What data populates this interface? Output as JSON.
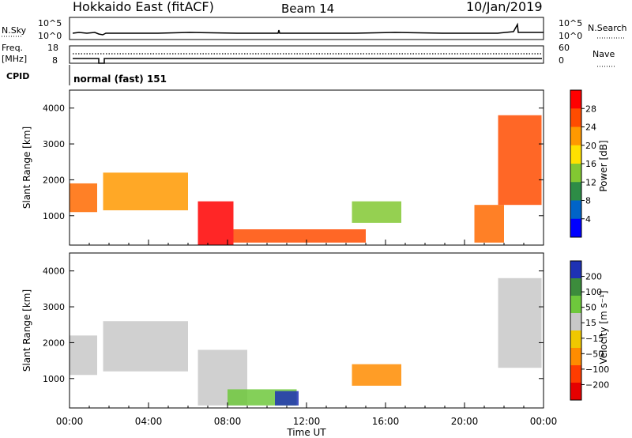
{
  "header": {
    "station": "Hokkaido East (fitACF)",
    "beam": "Beam 14",
    "date": "10/Jan/2019"
  },
  "strip": {
    "nsky_label": "N.Sky",
    "nsky_ticks": [
      "10^5",
      "10^0"
    ],
    "nsearch_label": "N.Search",
    "nsearch_ticks": [
      "10^5",
      "10^0"
    ],
    "freq_label_1": "Freq.",
    "freq_label_2": "[MHz]",
    "freq_ticks": [
      "18",
      "8"
    ],
    "nave_label": "Nave",
    "nave_ticks": [
      "60",
      "0"
    ],
    "cpid_label": "CPID",
    "cpid_value": "normal (fast) 151"
  },
  "chart_data": [
    {
      "type": "heatmap",
      "name": "power",
      "ylabel": "Slant Range [km]",
      "yticks": [
        "4000",
        "3000",
        "2000",
        "1000"
      ],
      "ylim": [
        180,
        4500
      ],
      "xlim": [
        0,
        24
      ],
      "colorbar_label": "Power [dB]",
      "colorbar_ticks": [
        "28",
        "24",
        "20",
        "16",
        "12",
        "8",
        "4"
      ],
      "colorbar_colors": [
        "#ff0000",
        "#ff4c00",
        "#ff9900",
        "#ffe100",
        "#82c832",
        "#2d8c46",
        "#0064c8",
        "#0000ff"
      ],
      "regions": [
        {
          "t0": 0.0,
          "t1": 1.4,
          "r0": 1100,
          "r1": 1900,
          "color": "#ff6a00"
        },
        {
          "t0": 1.7,
          "t1": 6.0,
          "r0": 1150,
          "r1": 2200,
          "color": "#ff9900"
        },
        {
          "t0": 6.5,
          "t1": 8.3,
          "r0": 180,
          "r1": 1400,
          "color": "#ff0000"
        },
        {
          "t0": 8.3,
          "t1": 15.0,
          "r0": 250,
          "r1": 620,
          "color": "#ff4c00"
        },
        {
          "t0": 14.3,
          "t1": 16.8,
          "r0": 800,
          "r1": 1400,
          "color": "#82c832"
        },
        {
          "t0": 20.5,
          "t1": 22.0,
          "r0": 250,
          "r1": 1300,
          "color": "#ff6a00"
        },
        {
          "t0": 21.7,
          "t1": 23.9,
          "r0": 1300,
          "r1": 3800,
          "color": "#ff4c00"
        }
      ]
    },
    {
      "type": "heatmap",
      "name": "velocity",
      "ylabel": "Slant Range [km]",
      "yticks": [
        "4000",
        "3000",
        "2000",
        "1000"
      ],
      "ylim": [
        180,
        4500
      ],
      "xlim": [
        0,
        24
      ],
      "xlabel": "Time UT",
      "xticks": [
        "00:00",
        "04:00",
        "08:00",
        "12:00",
        "16:00",
        "20:00",
        "00:00"
      ],
      "colorbar_label": "Velocity [m s⁻¹]",
      "colorbar_ticks": [
        "200",
        "100",
        "50",
        "15",
        "−15",
        "−50",
        "−100",
        "−200"
      ],
      "colorbar_colors": [
        "#1e32b4",
        "#3c8c3c",
        "#6ec83c",
        "#c8c8c8",
        "#f0c800",
        "#ff8c00",
        "#ff3c00",
        "#e60000"
      ],
      "regions": [
        {
          "t0": 0.0,
          "t1": 1.4,
          "r0": 1100,
          "r1": 2200,
          "color": "#c8c8c8"
        },
        {
          "t0": 1.7,
          "t1": 6.0,
          "r0": 1200,
          "r1": 2600,
          "color": "#c8c8c8"
        },
        {
          "t0": 6.5,
          "t1": 9.0,
          "r0": 250,
          "r1": 1800,
          "color": "#c8c8c8"
        },
        {
          "t0": 8.0,
          "t1": 11.5,
          "r0": 250,
          "r1": 700,
          "color": "#6ec83c"
        },
        {
          "t0": 10.4,
          "t1": 11.6,
          "r0": 250,
          "r1": 650,
          "color": "#1e32b4"
        },
        {
          "t0": 14.3,
          "t1": 16.8,
          "r0": 800,
          "r1": 1400,
          "color": "#ff8c00"
        },
        {
          "t0": 21.7,
          "t1": 23.9,
          "r0": 1300,
          "r1": 3800,
          "color": "#c8c8c8"
        }
      ]
    }
  ]
}
